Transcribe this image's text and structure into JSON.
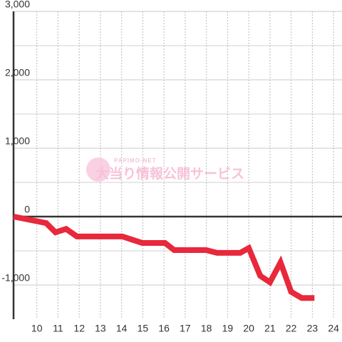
{
  "chart_data": {
    "type": "line",
    "x": [
      8.9,
      10.44,
      10.88,
      11.38,
      11.89,
      14.03,
      14.97,
      16.05,
      16.48,
      17.99,
      18.5,
      19.6,
      20.0,
      20.54,
      21.0,
      21.5,
      22.0,
      22.5,
      23.1
    ],
    "series": [
      {
        "color": "#e8283b",
        "values": [
          0,
          -95,
          -230,
          -180,
          -290,
          -290,
          -385,
          -385,
          -490,
          -490,
          -530,
          -530,
          -460,
          -865,
          -960,
          -670,
          -1100,
          -1190,
          -1190
        ]
      }
    ],
    "xlim": [
      8.9,
      24.4
    ],
    "xticks": [
      10,
      11,
      12,
      13,
      14,
      15,
      16,
      17,
      18,
      19,
      20,
      21,
      22,
      23,
      24
    ],
    "ylim": [
      -1500,
      3000
    ],
    "yticks": [
      {
        "value": -1000,
        "label": "-1,000"
      },
      0,
      {
        "value": 1000,
        "label": "1,000"
      },
      {
        "value": 2000,
        "label": "2,000"
      },
      {
        "value": 3000,
        "label": "3,000"
      }
    ],
    "y_minor_ticks": [
      -500,
      500,
      1500,
      2500
    ],
    "grid": true,
    "watermark": {
      "brand": "PAPIMO-NET",
      "text": "大当り情報公開サービス"
    }
  }
}
